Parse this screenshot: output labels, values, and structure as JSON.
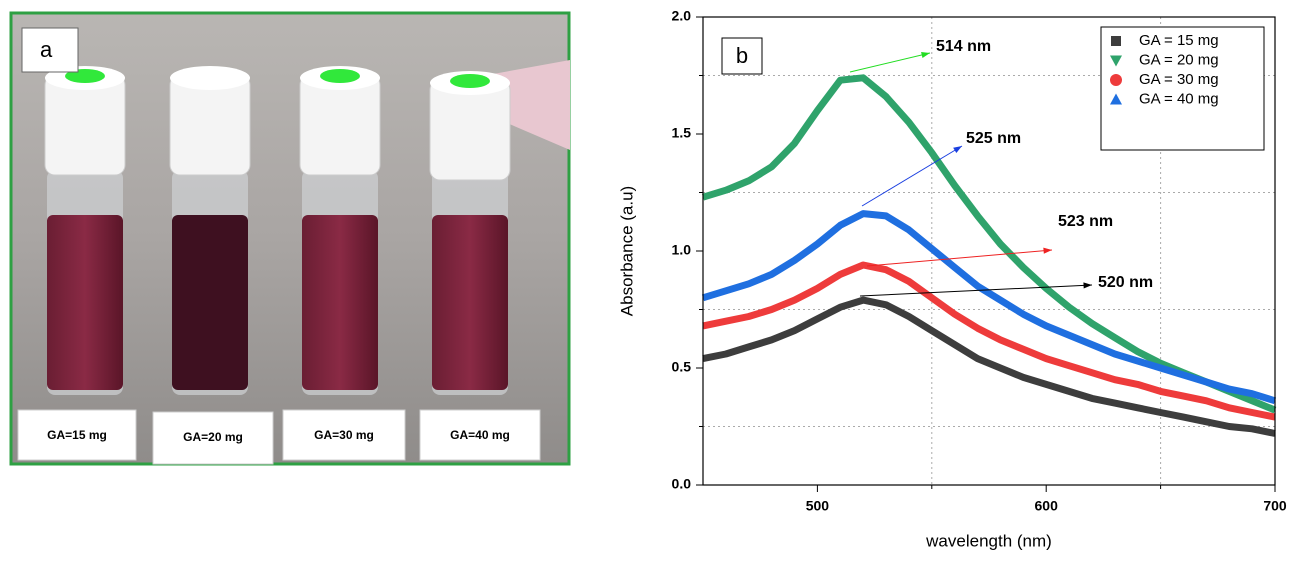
{
  "photo": {
    "label": "a",
    "captions": [
      "GA=15 mg",
      "GA=20 mg",
      "GA=30 mg",
      "GA=40 mg"
    ]
  },
  "chart_data": {
    "type": "line",
    "label": "b",
    "x_label": "wavelength (nm)",
    "y_label": "Absorbance (a.u)",
    "x": [
      450,
      460,
      470,
      480,
      490,
      500,
      510,
      520,
      530,
      540,
      550,
      560,
      570,
      580,
      590,
      600,
      610,
      620,
      630,
      640,
      650,
      660,
      670,
      680,
      690,
      700
    ],
    "series": [
      {
        "name": "GA = 15 mg",
        "color": "#3d3d3d",
        "marker": "square",
        "values": [
          0.54,
          0.56,
          0.59,
          0.62,
          0.66,
          0.71,
          0.76,
          0.79,
          0.77,
          0.72,
          0.66,
          0.6,
          0.54,
          0.5,
          0.46,
          0.43,
          0.4,
          0.37,
          0.35,
          0.33,
          0.31,
          0.29,
          0.27,
          0.25,
          0.24,
          0.22
        ]
      },
      {
        "name": "GA = 20 mg",
        "color": "#2fa36b",
        "marker": "triangle-down",
        "values": [
          1.23,
          1.26,
          1.3,
          1.36,
          1.46,
          1.6,
          1.73,
          1.74,
          1.66,
          1.55,
          1.42,
          1.28,
          1.15,
          1.03,
          0.93,
          0.84,
          0.76,
          0.69,
          0.63,
          0.57,
          0.52,
          0.48,
          0.44,
          0.4,
          0.36,
          0.32
        ]
      },
      {
        "name": "GA = 30 mg",
        "color": "#ee3b3b",
        "marker": "circle",
        "values": [
          0.68,
          0.7,
          0.72,
          0.75,
          0.79,
          0.84,
          0.9,
          0.94,
          0.92,
          0.87,
          0.8,
          0.73,
          0.67,
          0.62,
          0.58,
          0.54,
          0.51,
          0.48,
          0.45,
          0.43,
          0.4,
          0.38,
          0.36,
          0.33,
          0.31,
          0.29
        ]
      },
      {
        "name": "GA = 40 mg",
        "color": "#1f6fe0",
        "marker": "triangle-up",
        "values": [
          0.8,
          0.83,
          0.86,
          0.9,
          0.96,
          1.03,
          1.11,
          1.16,
          1.15,
          1.09,
          1.01,
          0.93,
          0.85,
          0.79,
          0.73,
          0.68,
          0.64,
          0.6,
          0.56,
          0.53,
          0.5,
          0.47,
          0.44,
          0.41,
          0.39,
          0.36
        ]
      }
    ],
    "annotations": [
      {
        "text": "514 nm",
        "color": "#22dd22"
      },
      {
        "text": "525 nm",
        "color": "#1a3fe0"
      },
      {
        "text": "523 nm",
        "color": "#ee2222"
      },
      {
        "text": "520 nm",
        "color": "#000000"
      }
    ],
    "xlim": [
      450,
      700
    ],
    "ylim": [
      0,
      2
    ],
    "xticks": [
      500,
      600,
      700
    ],
    "yticks": [
      {
        "value": 0,
        "label": "0.0"
      },
      0.5,
      {
        "value": 1,
        "label": "1.0"
      },
      1.5,
      {
        "value": 2,
        "label": "2.0"
      }
    ],
    "xminorticks": [
      550,
      650
    ],
    "yminorticks": [
      0.25,
      0.75,
      1.25,
      1.75
    ],
    "grid": true,
    "legend": "upper right"
  }
}
